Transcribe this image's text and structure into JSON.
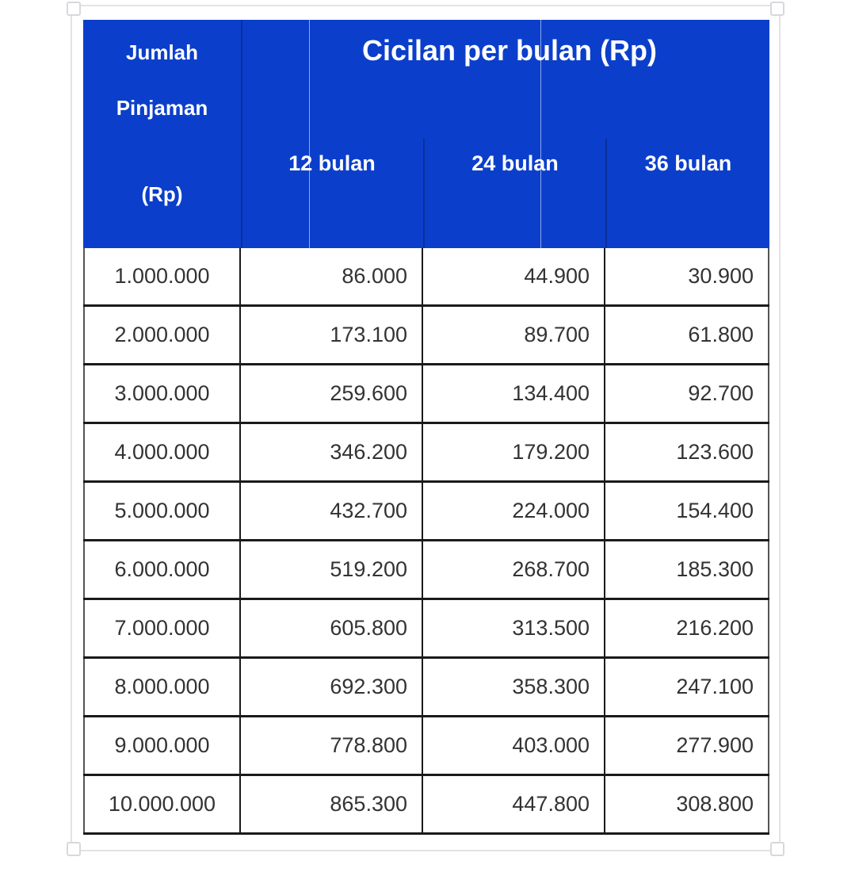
{
  "header": {
    "loan_col": [
      "Jumlah",
      "Pinjaman",
      "(Rp)"
    ],
    "title": "Cicilan per bulan (Rp)",
    "terms": [
      "12 bulan",
      "24 bulan",
      "36 bulan"
    ]
  },
  "colors": {
    "header_bg": "#0b3fcb",
    "header_text": "#ffffff"
  },
  "rows": [
    [
      "1.000.000",
      "86.000",
      "44.900",
      "30.900"
    ],
    [
      "2.000.000",
      "173.100",
      "89.700",
      "61.800"
    ],
    [
      "3.000.000",
      "259.600",
      "134.400",
      "92.700"
    ],
    [
      "4.000.000",
      "346.200",
      "179.200",
      "123.600"
    ],
    [
      "5.000.000",
      "432.700",
      "224.000",
      "154.400"
    ],
    [
      "6.000.000",
      "519.200",
      "268.700",
      "185.300"
    ],
    [
      "7.000.000",
      "605.800",
      "313.500",
      "216.200"
    ],
    [
      "8.000.000",
      "692.300",
      "358.300",
      "247.100"
    ],
    [
      "9.000.000",
      "778.800",
      "403.000",
      "277.900"
    ],
    [
      "10.000.000",
      "865.300",
      "447.800",
      "308.800"
    ]
  ]
}
